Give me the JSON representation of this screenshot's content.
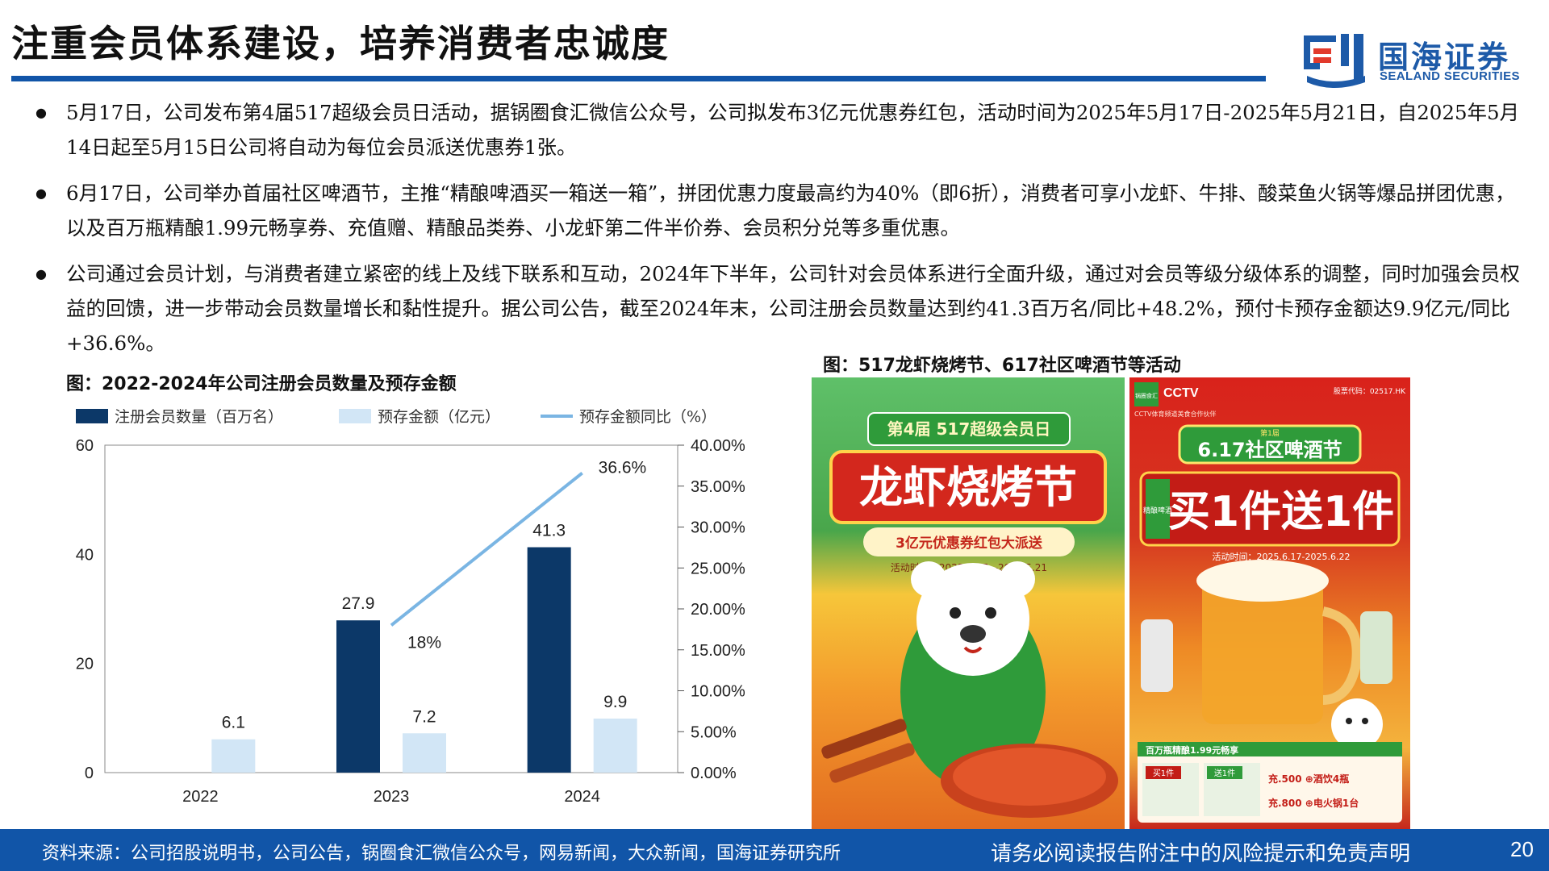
{
  "header": {
    "title": "注重会员体系建设，培养消费者忠诚度",
    "logo_cn": "国海证券",
    "logo_en": "SEALAND SECURITIES"
  },
  "bullets": [
    "5月17日，公司发布第4届517超级会员日活动，据锅圈食汇微信公众号，公司拟发布3亿元优惠券红包，活动时间为2025年5月17日-2025年5月21日，自2025年5月14日起至5月15日公司将自动为每位会员派送优惠券1张。",
    "6月17日，公司举办首届社区啤酒节，主推“精酿啤酒买一箱送一箱”，拼团优惠力度最高约为40%（即6折），消费者可享小龙虾、牛排、酸菜鱼火锅等爆品拼团优惠，以及百万瓶精酿1.99元畅享券、充值赠、精酿品类券、小龙虾第二件半价券、会员积分兑等多重优惠。",
    "公司通过会员计划，与消费者建立紧密的线上及线下联系和互动，2024年下半年，公司针对会员体系进行全面升级，通过对会员等级分级体系的调整，同时加强会员权益的回馈，进一步带动会员数量增长和黏性提升。据公司公告，截至2024年末，公司注册会员数量达到约41.3百万名/同比+48.2%，预付卡预存金额达9.9亿元/同比+36.6%。"
  ],
  "chart_data": {
    "type": "bar",
    "title": "图：2022-2024年公司注册会员数量及预存金额",
    "categories": [
      "2022",
      "2023",
      "2024"
    ],
    "series": [
      {
        "name": "注册会员数量（百万名）",
        "values": [
          null,
          27.9,
          41.3
        ],
        "labels": [
          "",
          "27.9",
          "41.3"
        ],
        "color": "#0c3868",
        "axis": "left"
      },
      {
        "name": "预存金额（亿元）",
        "values": [
          6.1,
          7.2,
          9.9
        ],
        "labels": [
          "6.1",
          "7.2",
          "9.9"
        ],
        "color": "#d2e6f6",
        "axis": "left"
      },
      {
        "name": "预存金额同比（%）",
        "type": "line",
        "values": [
          null,
          18.0,
          36.6
        ],
        "labels": [
          "",
          "18%",
          "36.6%"
        ],
        "color": "#7ab5e3",
        "axis": "right"
      }
    ],
    "ylim": [
      0,
      60
    ],
    "yticks": [
      "0",
      "20",
      "40",
      "60"
    ],
    "y2lim": [
      0,
      40
    ],
    "y2ticks": [
      "0.00%",
      "5.00%",
      "10.00%",
      "15.00%",
      "20.00%",
      "25.00%",
      "30.00%",
      "35.00%",
      "40.00%"
    ],
    "legend_position": "top",
    "grid": false
  },
  "images": {
    "title": "图：517龙虾烧烤节、617社区啤酒节等活动",
    "left_poster": {
      "banner": "第4届 517超级会员日",
      "headline": "龙虾烧烤节",
      "sub": "3亿元优惠券红包大派送",
      "date": "活动时间：2025.5.17—2025.5.21"
    },
    "right_poster": {
      "brand": "锅圈食汇",
      "cctv": "CCTV",
      "cctv_sub": "CCTV体育频道美食合作伙伴",
      "stock": "股票代码：02517.HK",
      "small": "第1届",
      "banner": "6.17社区啤酒节",
      "side_tag": "精酿啤酒",
      "headline": "买1件送1件",
      "date": "活动时间：2025.6.17-2025.6.22",
      "strip": "百万瓶精酿1.99元畅享",
      "buy": "买1件",
      "get": "送1件",
      "offer1": "充.500 ⊕酒饮4瓶",
      "offer2": "充.800 ⊕电火锅1台"
    }
  },
  "footer": {
    "source": "资料来源：公司招股说明书，公司公告，锅圈食汇微信公众号，网易新闻，大众新闻，国海证券研究所",
    "disclaimer": "请务必阅读报告附注中的风险提示和免责声明",
    "page": "20"
  }
}
